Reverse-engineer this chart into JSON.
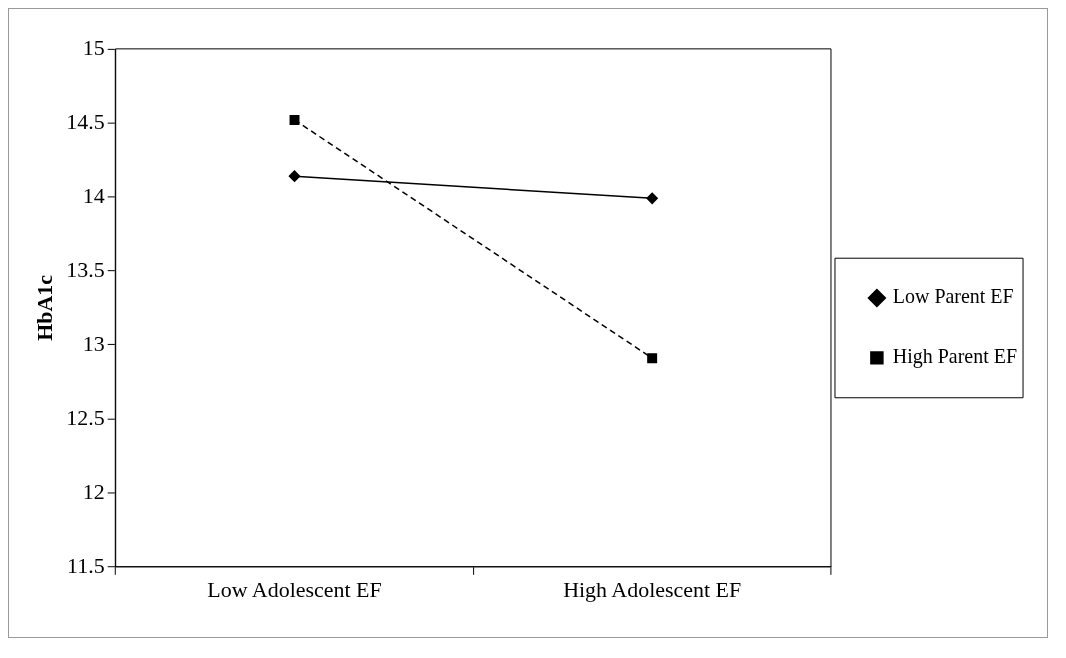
{
  "chart_data": {
    "type": "line",
    "ylabel": "HbA1c",
    "categories": [
      "Low Adolescent EF",
      "High Adolescent EF"
    ],
    "series": [
      {
        "name": "Low Parent EF",
        "color": "#000000",
        "marker": "diamond",
        "line_style": "solid",
        "values": [
          14.14,
          13.99
        ]
      },
      {
        "name": "High Parent EF",
        "color": "#000000",
        "marker": "square",
        "line_style": "dashed",
        "values": [
          14.52,
          12.91
        ]
      }
    ],
    "ylim": [
      11.5,
      15
    ],
    "yticks": [
      11.5,
      12,
      12.5,
      13,
      13.5,
      14,
      14.5,
      15
    ],
    "grid": false,
    "legend": "right"
  }
}
